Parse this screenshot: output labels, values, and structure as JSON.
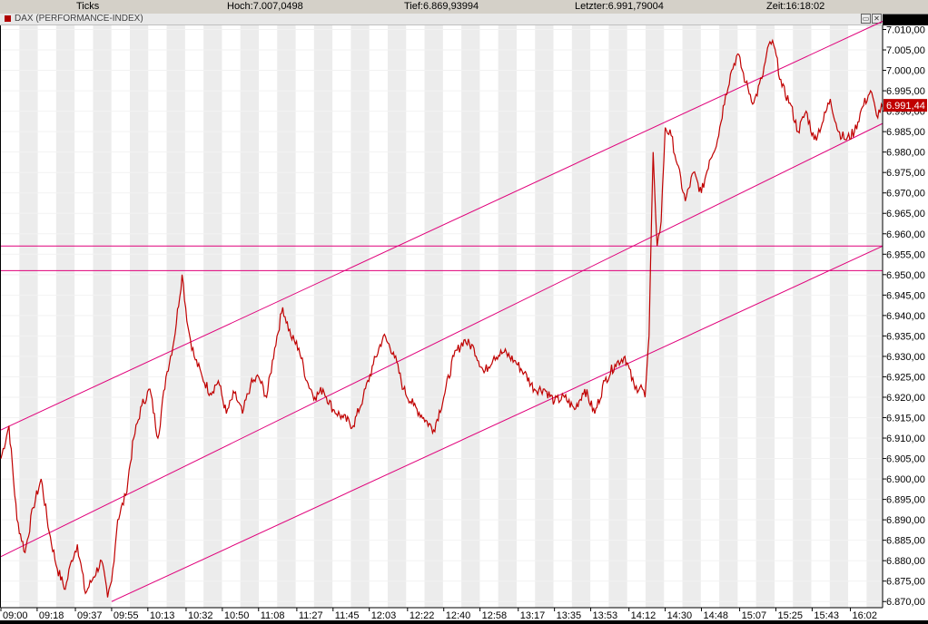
{
  "header": {
    "type_label": "Ticks",
    "high_label": "Hoch:7.007,0498",
    "low_label": "Tief:6.869,93994",
    "last_label": "Letzter:6.991,79004",
    "time_label": "Zeit:16:18:02"
  },
  "chart_title": "DAX (PERFORMANCE-INDEX)",
  "window_buttons": {
    "restore": "▭",
    "close": "✕"
  },
  "colors": {
    "price": "#c00000",
    "lines": "#e0007a",
    "last_badge": "#c00000"
  },
  "chart_data": {
    "type": "line",
    "title": "DAX (PERFORMANCE-INDEX)",
    "ylim": [
      6868.5,
      7011
    ],
    "xlim": [
      "09:00",
      "16:18"
    ],
    "x_ticks": [
      "09:00",
      "09:18",
      "09:37",
      "09:55",
      "10:13",
      "10:32",
      "10:50",
      "11:08",
      "11:27",
      "11:45",
      "12:03",
      "12:22",
      "12:40",
      "12:58",
      "13:17",
      "13:35",
      "13:53",
      "14:12",
      "14:30",
      "14:48",
      "15:07",
      "15:25",
      "15:43",
      "16:02"
    ],
    "y_ticks": [
      "6.870,00",
      "6.875,00",
      "6.880,00",
      "6.885,00",
      "6.890,00",
      "6.895,00",
      "6.900,00",
      "6.905,00",
      "6.910,00",
      "6.915,00",
      "6.920,00",
      "6.925,00",
      "6.930,00",
      "6.935,00",
      "6.940,00",
      "6.945,00",
      "6.950,00",
      "6.955,00",
      "6.960,00",
      "6.965,00",
      "6.970,00",
      "6.975,00",
      "6.980,00",
      "6.985,00",
      "6.990,00",
      "6.995,00",
      "7.000,00",
      "7.005,00",
      "7.010,00"
    ],
    "y_tick_values": [
      6870,
      6875,
      6880,
      6885,
      6890,
      6895,
      6900,
      6905,
      6910,
      6915,
      6920,
      6925,
      6930,
      6935,
      6940,
      6945,
      6950,
      6955,
      6960,
      6965,
      6970,
      6975,
      6980,
      6985,
      6990,
      6995,
      7000,
      7005,
      7010
    ],
    "last_value_label": "6.991,44",
    "last_value": 6991.44,
    "series": [
      {
        "values_time": [
          "09:00",
          "09:04",
          "09:08",
          "09:12",
          "09:16",
          "09:20",
          "09:24",
          "09:28",
          "09:32",
          "09:35",
          "09:38",
          "09:42",
          "09:46",
          "09:50",
          "09:53",
          "09:55",
          "09:58",
          "10:02",
          "10:06",
          "10:10",
          "10:14",
          "10:18",
          "10:22",
          "10:26",
          "10:30",
          "10:33",
          "10:36",
          "10:40",
          "10:44",
          "10:48",
          "10:52",
          "10:56",
          "11:00",
          "11:04",
          "11:08",
          "11:12",
          "11:16",
          "11:20",
          "11:24",
          "11:28",
          "11:32",
          "11:36",
          "11:40",
          "11:45",
          "11:50",
          "11:55",
          "12:00",
          "12:05",
          "12:10",
          "12:15",
          "12:20",
          "12:25",
          "12:30",
          "12:35",
          "12:40",
          "12:45",
          "12:50",
          "12:55",
          "13:00",
          "13:05",
          "13:10",
          "13:15",
          "13:20",
          "13:25",
          "13:30",
          "13:35",
          "13:40",
          "13:45",
          "13:50",
          "13:55",
          "14:00",
          "14:05",
          "14:10",
          "14:15",
          "14:18",
          "14:20",
          "14:22",
          "14:24",
          "14:26",
          "14:28",
          "14:30",
          "14:33",
          "14:36",
          "14:40",
          "14:44",
          "14:48",
          "14:52",
          "14:56",
          "15:00",
          "15:03",
          "15:06",
          "15:10",
          "15:14",
          "15:18",
          "15:22",
          "15:24",
          "15:28",
          "15:32",
          "15:36",
          "15:40",
          "15:44",
          "15:48",
          "15:52",
          "15:56",
          "16:00",
          "16:04",
          "16:08",
          "16:12",
          "16:15",
          "16:18"
        ],
        "values": [
          6905,
          6913,
          6890,
          6882,
          6893,
          6900,
          6887,
          6878,
          6873,
          6880,
          6884,
          6872,
          6876,
          6880,
          6871,
          6875,
          6890,
          6896,
          6910,
          6918,
          6922,
          6910,
          6925,
          6934,
          6950,
          6937,
          6930,
          6925,
          6921,
          6924,
          6916,
          6921,
          6916,
          6923,
          6925,
          6920,
          6932,
          6942,
          6935,
          6932,
          6924,
          6920,
          6922,
          6917,
          6915,
          6913,
          6920,
          6928,
          6935,
          6931,
          6922,
          6918,
          6915,
          6912,
          6920,
          6930,
          6934,
          6932,
          6926,
          6930,
          6931,
          6929,
          6926,
          6922,
          6922,
          6919,
          6920,
          6917,
          6922,
          6916,
          6924,
          6928,
          6930,
          6922,
          6923,
          6920,
          6935,
          6980,
          6957,
          6963,
          6986,
          6984,
          6977,
          6968,
          6975,
          6970,
          6978,
          6983,
          6994,
          7000,
          7004,
          6997,
          6992,
          6998,
          7007,
          7006,
          6996,
          6992,
          6985,
          6990,
          6983,
          6987,
          6993,
          6985,
          6983,
          6985,
          6991,
          6995,
          6989,
          6991
        ]
      }
    ],
    "trend_lines": [
      {
        "from": [
          "09:00",
          6912
        ],
        "to": [
          "16:18",
          7012
        ]
      },
      {
        "from": [
          "09:00",
          6881
        ],
        "to": [
          "16:18",
          6987
        ]
      },
      {
        "from": [
          "09:55",
          6870
        ],
        "to": [
          "16:18",
          6957
        ]
      }
    ],
    "horizontal_lines": [
      6957,
      6951
    ],
    "grid": true,
    "legend": "none"
  }
}
